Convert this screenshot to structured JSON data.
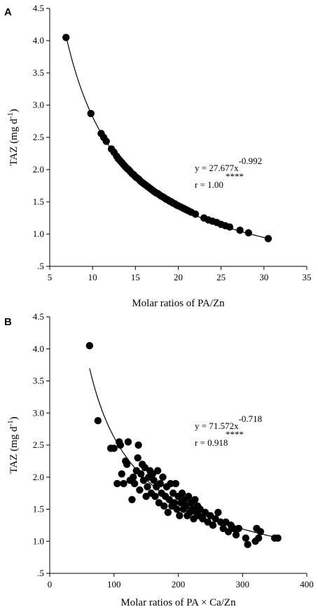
{
  "chart_data": [
    {
      "type": "scatter",
      "panel": "A",
      "xlabel": "Molar ratios of PA/Zn",
      "ylabel_main": "TAZ (mg d",
      "ylabel_sup": "-1",
      "ylabel_close": ")",
      "xlim": [
        5,
        35
      ],
      "ylim": [
        0.5,
        4.5
      ],
      "xticks": [
        5,
        10,
        15,
        20,
        25,
        30,
        35
      ],
      "xtick_labels": [
        "5",
        "10",
        "15",
        "20",
        "25",
        "30",
        "35"
      ],
      "yticks": [
        0.5,
        1.0,
        1.5,
        2.0,
        2.5,
        3.0,
        3.5,
        4.0,
        4.5
      ],
      "ytick_labels": [
        ".5",
        "1.0",
        "1.5",
        "2.0",
        "2.5",
        "3.0",
        "3.5",
        "4.0",
        "4.5"
      ],
      "fit": {
        "a": 27.677,
        "b": -0.992,
        "x_range": [
          6.9,
          30.5
        ]
      },
      "equation_base": "y = 27.677x",
      "equation_exp": "-0.992",
      "stars": "****",
      "r_text": "r = 1.00",
      "points": [
        [
          6.9,
          4.05
        ],
        [
          9.8,
          2.87
        ],
        [
          11.0,
          2.56
        ],
        [
          11.3,
          2.5
        ],
        [
          11.6,
          2.44
        ],
        [
          12.2,
          2.32
        ],
        [
          12.5,
          2.27
        ],
        [
          12.8,
          2.21
        ],
        [
          13.0,
          2.17
        ],
        [
          13.2,
          2.14
        ],
        [
          13.4,
          2.11
        ],
        [
          13.6,
          2.08
        ],
        [
          13.8,
          2.05
        ],
        [
          14.0,
          2.02
        ],
        [
          14.2,
          2.0
        ],
        [
          14.4,
          1.97
        ],
        [
          14.6,
          1.94
        ],
        [
          14.8,
          1.92
        ],
        [
          15.0,
          1.89
        ],
        [
          15.2,
          1.87
        ],
        [
          15.4,
          1.85
        ],
        [
          15.6,
          1.82
        ],
        [
          15.8,
          1.8
        ],
        [
          16.0,
          1.78
        ],
        [
          16.2,
          1.76
        ],
        [
          16.4,
          1.74
        ],
        [
          16.6,
          1.72
        ],
        [
          16.8,
          1.7
        ],
        [
          17.0,
          1.68
        ],
        [
          17.2,
          1.66
        ],
        [
          17.4,
          1.64
        ],
        [
          17.6,
          1.63
        ],
        [
          17.8,
          1.61
        ],
        [
          18.0,
          1.59
        ],
        [
          18.2,
          1.58
        ],
        [
          18.4,
          1.56
        ],
        [
          18.6,
          1.54
        ],
        [
          18.8,
          1.53
        ],
        [
          19.0,
          1.51
        ],
        [
          19.2,
          1.5
        ],
        [
          19.4,
          1.48
        ],
        [
          19.6,
          1.47
        ],
        [
          19.8,
          1.45
        ],
        [
          20.0,
          1.44
        ],
        [
          20.3,
          1.42
        ],
        [
          20.6,
          1.4
        ],
        [
          20.9,
          1.38
        ],
        [
          21.2,
          1.36
        ],
        [
          21.5,
          1.34
        ],
        [
          22.0,
          1.31
        ],
        [
          23.0,
          1.25
        ],
        [
          23.5,
          1.22
        ],
        [
          24.0,
          1.2
        ],
        [
          24.5,
          1.18
        ],
        [
          25.0,
          1.15
        ],
        [
          25.5,
          1.13
        ],
        [
          26.0,
          1.11
        ],
        [
          27.2,
          1.06
        ],
        [
          28.2,
          1.02
        ],
        [
          30.5,
          0.93
        ]
      ]
    },
    {
      "type": "scatter",
      "panel": "B",
      "xlabel": "Molar ratios of PA × Ca/Zn",
      "ylabel_main": "TAZ (mg d",
      "ylabel_sup": "-1",
      "ylabel_close": ")",
      "xlim": [
        0,
        400
      ],
      "ylim": [
        0.5,
        4.5
      ],
      "xticks": [
        0,
        100,
        200,
        300,
        400
      ],
      "xtick_labels": [
        "0",
        "100",
        "200",
        "300",
        "400"
      ],
      "yticks": [
        0.5,
        1.0,
        1.5,
        2.0,
        2.5,
        3.0,
        3.5,
        4.0,
        4.5
      ],
      "ytick_labels": [
        ".5",
        "1.0",
        "1.5",
        "2.0",
        "2.5",
        "3.0",
        "3.5",
        "4.0",
        "4.5"
      ],
      "fit": {
        "a": 71.572,
        "b": -0.718,
        "x_range": [
          62,
          355
        ]
      },
      "equation_base": "y = 71.572x",
      "equation_exp": "-0.718",
      "stars": "****",
      "r_text": "r = 0.918",
      "points": [
        [
          62,
          4.05
        ],
        [
          75,
          2.88
        ],
        [
          95,
          2.45
        ],
        [
          100,
          2.45
        ],
        [
          105,
          1.9
        ],
        [
          108,
          2.55
        ],
        [
          110,
          2.5
        ],
        [
          112,
          2.05
        ],
        [
          115,
          1.9
        ],
        [
          118,
          2.25
        ],
        [
          120,
          2.2
        ],
        [
          122,
          2.55
        ],
        [
          125,
          1.95
        ],
        [
          128,
          1.65
        ],
        [
          130,
          2.0
        ],
        [
          132,
          1.9
        ],
        [
          135,
          2.1
        ],
        [
          137,
          2.3
        ],
        [
          138,
          2.5
        ],
        [
          140,
          1.8
        ],
        [
          142,
          2.05
        ],
        [
          144,
          2.2
        ],
        [
          146,
          1.95
        ],
        [
          148,
          2.15
        ],
        [
          150,
          1.7
        ],
        [
          152,
          1.85
        ],
        [
          154,
          2.0
        ],
        [
          156,
          2.1
        ],
        [
          158,
          1.75
        ],
        [
          160,
          2.05
        ],
        [
          162,
          1.95
        ],
        [
          164,
          1.7
        ],
        [
          166,
          1.85
        ],
        [
          168,
          2.1
        ],
        [
          170,
          1.6
        ],
        [
          172,
          1.9
        ],
        [
          174,
          1.75
        ],
        [
          176,
          2.0
        ],
        [
          178,
          1.55
        ],
        [
          180,
          1.7
        ],
        [
          182,
          1.85
        ],
        [
          184,
          1.45
        ],
        [
          186,
          1.65
        ],
        [
          188,
          1.9
        ],
        [
          190,
          1.55
        ],
        [
          192,
          1.75
        ],
        [
          194,
          1.6
        ],
        [
          196,
          1.9
        ],
        [
          198,
          1.5
        ],
        [
          200,
          1.7
        ],
        [
          202,
          1.4
        ],
        [
          204,
          1.6
        ],
        [
          206,
          1.75
        ],
        [
          208,
          1.5
        ],
        [
          210,
          1.65
        ],
        [
          212,
          1.55
        ],
        [
          214,
          1.4
        ],
        [
          216,
          1.7
        ],
        [
          218,
          1.45
        ],
        [
          220,
          1.6
        ],
        [
          222,
          1.5
        ],
        [
          224,
          1.35
        ],
        [
          226,
          1.65
        ],
        [
          228,
          1.45
        ],
        [
          230,
          1.55
        ],
        [
          232,
          1.4
        ],
        [
          234,
          1.5
        ],
        [
          238,
          1.35
        ],
        [
          242,
          1.45
        ],
        [
          246,
          1.3
        ],
        [
          250,
          1.4
        ],
        [
          254,
          1.25
        ],
        [
          258,
          1.35
        ],
        [
          262,
          1.45
        ],
        [
          266,
          1.3
        ],
        [
          270,
          1.2
        ],
        [
          274,
          1.3
        ],
        [
          278,
          1.15
        ],
        [
          282,
          1.25
        ],
        [
          286,
          1.2
        ],
        [
          290,
          1.1
        ],
        [
          294,
          1.2
        ],
        [
          305,
          1.05
        ],
        [
          308,
          0.95
        ],
        [
          320,
          1.0
        ],
        [
          322,
          1.2
        ],
        [
          325,
          1.05
        ],
        [
          328,
          1.15
        ],
        [
          350,
          1.05
        ],
        [
          355,
          1.05
        ]
      ]
    }
  ]
}
